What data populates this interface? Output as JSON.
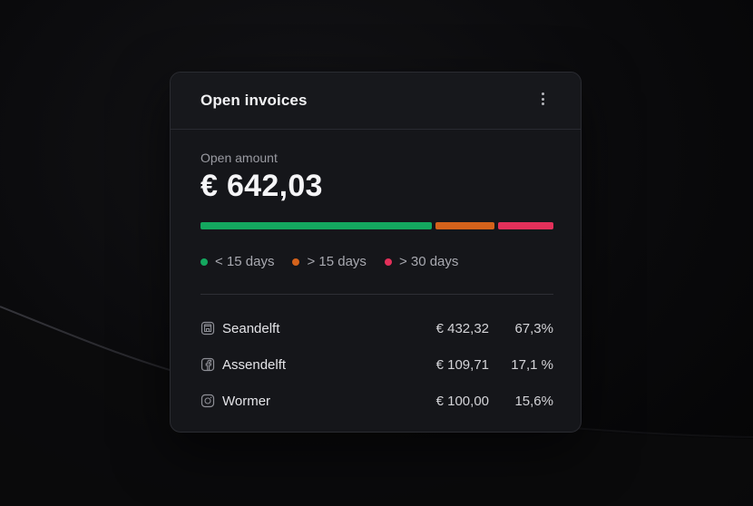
{
  "card": {
    "title": "Open invoices",
    "menu_icon": "more-vertical-icon"
  },
  "summary": {
    "label": "Open amount",
    "value": "€ 642,03"
  },
  "aging_bar": {
    "segments": [
      {
        "name": "< 15 days",
        "color": "#14a85f",
        "share": 0.67
      },
      {
        "name": "> 15 days",
        "color": "#d4621b",
        "share": 0.17
      },
      {
        "name": "> 30 days",
        "color": "#e3305a",
        "share": 0.16
      }
    ]
  },
  "legend": [
    {
      "label": "< 15 days",
      "color": "#14a85f"
    },
    {
      "label": "> 15 days",
      "color": "#d4621b"
    },
    {
      "label": "> 30 days",
      "color": "#e3305a"
    }
  ],
  "rows": [
    {
      "icon": "storefront-icon",
      "name": "Seandelft",
      "amount": "€ 432,32",
      "pct": "67,3%"
    },
    {
      "icon": "facebook-icon",
      "name": "Assendelft",
      "amount": "€ 109,71",
      "pct": "17,1 %"
    },
    {
      "icon": "instagram-icon",
      "name": "Wormer",
      "amount": "€ 100,00",
      "pct": "15,6%"
    }
  ]
}
